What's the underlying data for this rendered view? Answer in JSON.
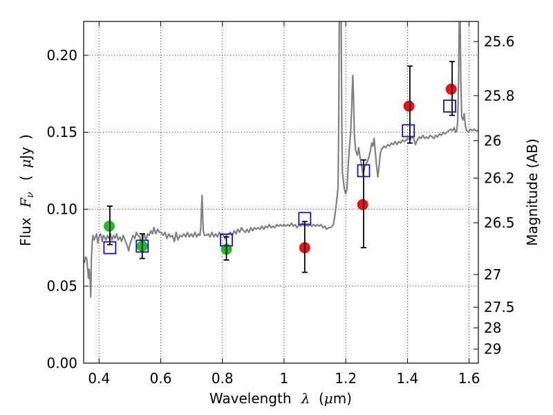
{
  "chart_data": {
    "type": "scatter",
    "xlabel": {
      "prefix": "Wavelength",
      "symbol": "λ",
      "unit_open": "(",
      "unit_mu": "μ",
      "unit_rest": "m)"
    },
    "ylabel": {
      "prefix": "Flux",
      "symbol": "F",
      "sub": "ν",
      "unit_open": "(",
      "unit_mu": "μ",
      "unit_rest": "Jy",
      "unit_close": ")"
    },
    "y2label": "Magnitude (AB)",
    "xlim": [
      0.35,
      1.63
    ],
    "ylim": [
      0.0,
      0.222
    ],
    "grid": true,
    "x_ticks": [
      {
        "value": 0.4,
        "label": "0.4"
      },
      {
        "value": 0.6,
        "label": "0.6"
      },
      {
        "value": 0.8,
        "label": "0.8"
      },
      {
        "value": 1.0,
        "label": "1"
      },
      {
        "value": 1.2,
        "label": "1.2"
      },
      {
        "value": 1.4,
        "label": "1.4"
      },
      {
        "value": 1.6,
        "label": "1.6"
      }
    ],
    "y_ticks": [
      {
        "value": 0.0,
        "label": "0.00"
      },
      {
        "value": 0.05,
        "label": "0.05"
      },
      {
        "value": 0.1,
        "label": "0.10"
      },
      {
        "value": 0.15,
        "label": "0.15"
      },
      {
        "value": 0.2,
        "label": "0.20"
      }
    ],
    "y2_ticks": [
      {
        "value": 25.6,
        "label": "25.6"
      },
      {
        "value": 25.8,
        "label": "25.8"
      },
      {
        "value": 26.0,
        "label": "26"
      },
      {
        "value": 26.2,
        "label": "26.2"
      },
      {
        "value": 26.5,
        "label": "26.5"
      },
      {
        "value": 27.0,
        "label": "27"
      },
      {
        "value": 27.5,
        "label": "27.5"
      },
      {
        "value": 28.0,
        "label": "28"
      },
      {
        "value": 29.0,
        "label": "29"
      }
    ],
    "series": [
      {
        "name": "model spectrum",
        "kind": "line",
        "color": "#808080",
        "points": [
          [
            0.352,
            0.065
          ],
          [
            0.356,
            0.069
          ],
          [
            0.36,
            0.068
          ],
          [
            0.363,
            0.061
          ],
          [
            0.366,
            0.055
          ],
          [
            0.368,
            0.061
          ],
          [
            0.371,
            0.055
          ],
          [
            0.373,
            0.043
          ],
          [
            0.375,
            0.068
          ],
          [
            0.378,
            0.079
          ],
          [
            0.38,
            0.083
          ],
          [
            0.384,
            0.08
          ],
          [
            0.388,
            0.082
          ],
          [
            0.392,
            0.084
          ],
          [
            0.396,
            0.078
          ],
          [
            0.4,
            0.082
          ],
          [
            0.405,
            0.084
          ],
          [
            0.41,
            0.079
          ],
          [
            0.414,
            0.083
          ],
          [
            0.418,
            0.082
          ],
          [
            0.422,
            0.08
          ],
          [
            0.427,
            0.083
          ],
          [
            0.432,
            0.081
          ],
          [
            0.437,
            0.084
          ],
          [
            0.442,
            0.08
          ],
          [
            0.447,
            0.083
          ],
          [
            0.452,
            0.081
          ],
          [
            0.457,
            0.084
          ],
          [
            0.462,
            0.08
          ],
          [
            0.468,
            0.082
          ],
          [
            0.473,
            0.079
          ],
          [
            0.478,
            0.083
          ],
          [
            0.484,
            0.08
          ],
          [
            0.49,
            0.077
          ],
          [
            0.496,
            0.073
          ],
          [
            0.5,
            0.077
          ],
          [
            0.505,
            0.08
          ],
          [
            0.51,
            0.083
          ],
          [
            0.516,
            0.081
          ],
          [
            0.521,
            0.085
          ],
          [
            0.526,
            0.083
          ],
          [
            0.532,
            0.082
          ],
          [
            0.537,
            0.077
          ],
          [
            0.541,
            0.08
          ],
          [
            0.546,
            0.084
          ],
          [
            0.552,
            0.08
          ],
          [
            0.558,
            0.084
          ],
          [
            0.563,
            0.083
          ],
          [
            0.568,
            0.086
          ],
          [
            0.573,
            0.084
          ],
          [
            0.578,
            0.088
          ],
          [
            0.584,
            0.084
          ],
          [
            0.59,
            0.087
          ],
          [
            0.596,
            0.085
          ],
          [
            0.602,
            0.085
          ],
          [
            0.608,
            0.083
          ],
          [
            0.614,
            0.085
          ],
          [
            0.62,
            0.081
          ],
          [
            0.626,
            0.084
          ],
          [
            0.632,
            0.082
          ],
          [
            0.638,
            0.083
          ],
          [
            0.644,
            0.079
          ],
          [
            0.65,
            0.085
          ],
          [
            0.656,
            0.08
          ],
          [
            0.662,
            0.083
          ],
          [
            0.668,
            0.082
          ],
          [
            0.675,
            0.084
          ],
          [
            0.681,
            0.082
          ],
          [
            0.687,
            0.085
          ],
          [
            0.693,
            0.082
          ],
          [
            0.699,
            0.084
          ],
          [
            0.705,
            0.082
          ],
          [
            0.711,
            0.085
          ],
          [
            0.717,
            0.082
          ],
          [
            0.722,
            0.084
          ],
          [
            0.727,
            0.083
          ],
          [
            0.73,
            0.088
          ],
          [
            0.732,
            0.099
          ],
          [
            0.734,
            0.109
          ],
          [
            0.736,
            0.097
          ],
          [
            0.738,
            0.086
          ],
          [
            0.742,
            0.083
          ],
          [
            0.748,
            0.083
          ],
          [
            0.754,
            0.084
          ],
          [
            0.76,
            0.082
          ],
          [
            0.766,
            0.085
          ],
          [
            0.772,
            0.082
          ],
          [
            0.778,
            0.084
          ],
          [
            0.784,
            0.082
          ],
          [
            0.79,
            0.085
          ],
          [
            0.796,
            0.083
          ],
          [
            0.802,
            0.084
          ],
          [
            0.808,
            0.081
          ],
          [
            0.813,
            0.083
          ],
          [
            0.82,
            0.084
          ],
          [
            0.826,
            0.085
          ],
          [
            0.832,
            0.083
          ],
          [
            0.838,
            0.086
          ],
          [
            0.844,
            0.084
          ],
          [
            0.85,
            0.087
          ],
          [
            0.856,
            0.085
          ],
          [
            0.862,
            0.088
          ],
          [
            0.868,
            0.086
          ],
          [
            0.874,
            0.085
          ],
          [
            0.88,
            0.087
          ],
          [
            0.886,
            0.085
          ],
          [
            0.892,
            0.088
          ],
          [
            0.898,
            0.086
          ],
          [
            0.904,
            0.088
          ],
          [
            0.91,
            0.087
          ],
          [
            0.916,
            0.088
          ],
          [
            0.922,
            0.087
          ],
          [
            0.928,
            0.089
          ],
          [
            0.934,
            0.087
          ],
          [
            0.94,
            0.089
          ],
          [
            0.946,
            0.088
          ],
          [
            0.952,
            0.09
          ],
          [
            0.958,
            0.088
          ],
          [
            0.964,
            0.089
          ],
          [
            0.97,
            0.088
          ],
          [
            0.976,
            0.09
          ],
          [
            0.982,
            0.089
          ],
          [
            0.988,
            0.09
          ],
          [
            0.994,
            0.089
          ],
          [
            1.0,
            0.09
          ],
          [
            1.006,
            0.089
          ],
          [
            1.012,
            0.09
          ],
          [
            1.018,
            0.089
          ],
          [
            1.024,
            0.091
          ],
          [
            1.03,
            0.089
          ],
          [
            1.036,
            0.09
          ],
          [
            1.042,
            0.088
          ],
          [
            1.048,
            0.09
          ],
          [
            1.054,
            0.089
          ],
          [
            1.06,
            0.091
          ],
          [
            1.066,
            0.089
          ],
          [
            1.072,
            0.09
          ],
          [
            1.078,
            0.089
          ],
          [
            1.084,
            0.09
          ],
          [
            1.09,
            0.089
          ],
          [
            1.096,
            0.09
          ],
          [
            1.102,
            0.089
          ],
          [
            1.108,
            0.09
          ],
          [
            1.114,
            0.089
          ],
          [
            1.12,
            0.09
          ],
          [
            1.126,
            0.088
          ],
          [
            1.132,
            0.089
          ],
          [
            1.138,
            0.087
          ],
          [
            1.144,
            0.088
          ],
          [
            1.15,
            0.088
          ],
          [
            1.156,
            0.089
          ],
          [
            1.16,
            0.09
          ],
          [
            1.164,
            0.095
          ],
          [
            1.168,
            0.101
          ],
          [
            1.172,
            0.108
          ],
          [
            1.175,
            0.114
          ],
          [
            1.177,
            0.15
          ],
          [
            1.179,
            0.222
          ],
          [
            1.185,
            0.222
          ],
          [
            1.187,
            0.16
          ],
          [
            1.189,
            0.124
          ],
          [
            1.192,
            0.119
          ],
          [
            1.195,
            0.114
          ],
          [
            1.198,
            0.111
          ],
          [
            1.2,
            0.11
          ],
          [
            1.204,
            0.113
          ],
          [
            1.208,
            0.128
          ],
          [
            1.212,
            0.14
          ],
          [
            1.216,
            0.15
          ],
          [
            1.219,
            0.165
          ],
          [
            1.221,
            0.177
          ],
          [
            1.223,
            0.187
          ],
          [
            1.225,
            0.175
          ],
          [
            1.228,
            0.148
          ],
          [
            1.232,
            0.138
          ],
          [
            1.238,
            0.135
          ],
          [
            1.242,
            0.14
          ],
          [
            1.247,
            0.133
          ],
          [
            1.252,
            0.128
          ],
          [
            1.256,
            0.122
          ],
          [
            1.262,
            0.128
          ],
          [
            1.268,
            0.13
          ],
          [
            1.274,
            0.133
          ],
          [
            1.28,
            0.138
          ],
          [
            1.284,
            0.143
          ],
          [
            1.288,
            0.141
          ],
          [
            1.292,
            0.146
          ],
          [
            1.296,
            0.137
          ],
          [
            1.3,
            0.128
          ],
          [
            1.304,
            0.121
          ],
          [
            1.308,
            0.128
          ],
          [
            1.312,
            0.136
          ],
          [
            1.316,
            0.139
          ],
          [
            1.32,
            0.14
          ],
          [
            1.324,
            0.141
          ],
          [
            1.33,
            0.14
          ],
          [
            1.336,
            0.142
          ],
          [
            1.342,
            0.141
          ],
          [
            1.348,
            0.143
          ],
          [
            1.354,
            0.142
          ],
          [
            1.36,
            0.144
          ],
          [
            1.366,
            0.142
          ],
          [
            1.372,
            0.144
          ],
          [
            1.378,
            0.143
          ],
          [
            1.384,
            0.145
          ],
          [
            1.39,
            0.144
          ],
          [
            1.396,
            0.145
          ],
          [
            1.402,
            0.146
          ],
          [
            1.408,
            0.145
          ],
          [
            1.414,
            0.147
          ],
          [
            1.42,
            0.146
          ],
          [
            1.426,
            0.142
          ],
          [
            1.432,
            0.145
          ],
          [
            1.438,
            0.147
          ],
          [
            1.444,
            0.146
          ],
          [
            1.45,
            0.148
          ],
          [
            1.456,
            0.146
          ],
          [
            1.462,
            0.147
          ],
          [
            1.468,
            0.146
          ],
          [
            1.474,
            0.148
          ],
          [
            1.48,
            0.147
          ],
          [
            1.486,
            0.146
          ],
          [
            1.492,
            0.148
          ],
          [
            1.498,
            0.147
          ],
          [
            1.504,
            0.149
          ],
          [
            1.51,
            0.148
          ],
          [
            1.516,
            0.15
          ],
          [
            1.522,
            0.149
          ],
          [
            1.528,
            0.15
          ],
          [
            1.534,
            0.151
          ],
          [
            1.54,
            0.152
          ],
          [
            1.546,
            0.151
          ],
          [
            1.552,
            0.153
          ],
          [
            1.556,
            0.15
          ],
          [
            1.56,
            0.151
          ],
          [
            1.563,
            0.157
          ],
          [
            1.566,
            0.185
          ],
          [
            1.568,
            0.222
          ],
          [
            1.571,
            0.222
          ],
          [
            1.573,
            0.185
          ],
          [
            1.576,
            0.16
          ],
          [
            1.58,
            0.158
          ],
          [
            1.584,
            0.162
          ],
          [
            1.588,
            0.154
          ],
          [
            1.592,
            0.151
          ],
          [
            1.598,
            0.15
          ],
          [
            1.604,
            0.152
          ],
          [
            1.61,
            0.151
          ],
          [
            1.616,
            0.152
          ],
          [
            1.622,
            0.151
          ],
          [
            1.63,
            0.151
          ]
        ]
      },
      {
        "name": "green points",
        "kind": "circle",
        "color": "#1fbf1f",
        "points": [
          {
            "x": 0.433,
            "y": 0.089
          },
          {
            "x": 0.54,
            "y": 0.076
          },
          {
            "x": 0.813,
            "y": 0.074
          }
        ]
      },
      {
        "name": "red points",
        "kind": "circle",
        "color": "#ee1111",
        "points": [
          {
            "x": 1.067,
            "y": 0.075
          },
          {
            "x": 1.255,
            "y": 0.103
          },
          {
            "x": 1.405,
            "y": 0.167
          },
          {
            "x": 1.542,
            "y": 0.178
          }
        ]
      },
      {
        "name": "error bars",
        "kind": "errorbar",
        "color": "#000000",
        "points": [
          {
            "x": 0.435,
            "lo": 0.077,
            "hi": 0.102
          },
          {
            "x": 0.54,
            "lo": 0.068,
            "hi": 0.084
          },
          {
            "x": 0.813,
            "lo": 0.067,
            "hi": 0.082
          },
          {
            "x": 1.067,
            "lo": 0.059,
            "hi": 0.092
          },
          {
            "x": 1.258,
            "lo": 0.075,
            "hi": 0.132
          },
          {
            "x": 1.408,
            "lo": 0.143,
            "hi": 0.193
          },
          {
            "x": 1.545,
            "lo": 0.161,
            "hi": 0.196
          }
        ]
      },
      {
        "name": "blue squares",
        "kind": "square",
        "color": "#1111cc",
        "points": [
          {
            "x": 0.435,
            "y": 0.075
          },
          {
            "x": 0.54,
            "y": 0.076
          },
          {
            "x": 0.813,
            "y": 0.08
          },
          {
            "x": 1.067,
            "y": 0.094
          },
          {
            "x": 1.258,
            "y": 0.125
          },
          {
            "x": 1.403,
            "y": 0.151
          },
          {
            "x": 1.537,
            "y": 0.167
          }
        ]
      }
    ]
  }
}
